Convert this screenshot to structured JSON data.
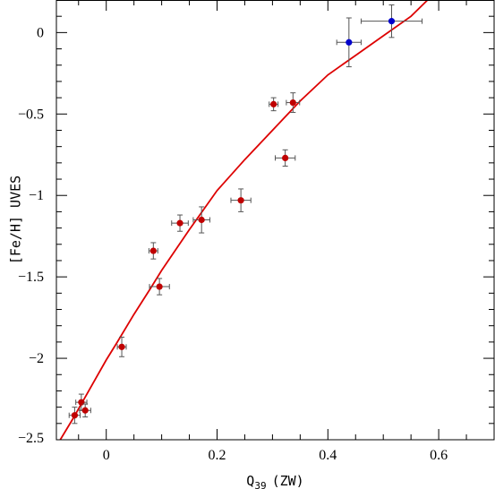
{
  "chart_data": {
    "type": "scatter",
    "title": "",
    "xlabel": "Q",
    "xlabel_subscript": "39",
    "xlabel_suffix": "(ZW)",
    "ylabel": "[Fe/H] UVES",
    "xlim": [
      -0.09,
      0.7
    ],
    "ylim": [
      -2.5,
      0.2
    ],
    "x_ticks": [
      0,
      0.2,
      0.4,
      0.6
    ],
    "x_tick_labels": [
      "0",
      "0.2",
      "0.4",
      "0.6"
    ],
    "y_ticks": [
      0,
      -0.5,
      -1,
      -1.5,
      -2,
      -2.5
    ],
    "y_tick_labels": [
      "0",
      "−0.5",
      "−1",
      "−1.5",
      "−2",
      "−2.5"
    ],
    "grid": false,
    "series": [
      {
        "color": "#c00000",
        "points": [
          {
            "x": -0.057,
            "y": -2.35,
            "xerr": 0.01,
            "yerr": 0.05
          },
          {
            "x": -0.045,
            "y": -2.27,
            "xerr": 0.01,
            "yerr": 0.05
          },
          {
            "x": -0.038,
            "y": -2.32,
            "xerr": 0.01,
            "yerr": 0.04
          },
          {
            "x": 0.028,
            "y": -1.93,
            "xerr": 0.008,
            "yerr": 0.06
          },
          {
            "x": 0.085,
            "y": -1.34,
            "xerr": 0.008,
            "yerr": 0.05
          },
          {
            "x": 0.096,
            "y": -1.56,
            "xerr": 0.018,
            "yerr": 0.05
          },
          {
            "x": 0.133,
            "y": -1.17,
            "xerr": 0.015,
            "yerr": 0.05
          },
          {
            "x": 0.172,
            "y": -1.15,
            "xerr": 0.015,
            "yerr": 0.08
          },
          {
            "x": 0.243,
            "y": -1.03,
            "xerr": 0.018,
            "yerr": 0.07
          },
          {
            "x": 0.302,
            "y": -0.44,
            "xerr": 0.008,
            "yerr": 0.04
          },
          {
            "x": 0.323,
            "y": -0.77,
            "xerr": 0.018,
            "yerr": 0.05
          },
          {
            "x": 0.337,
            "y": -0.43,
            "xerr": 0.012,
            "yerr": 0.06
          }
        ]
      },
      {
        "color": "#0000cc",
        "points": [
          {
            "x": 0.438,
            "y": -0.06,
            "xerr": 0.022,
            "yerr": 0.15
          },
          {
            "x": 0.515,
            "y": 0.07,
            "xerr": 0.055,
            "yerr": 0.1
          }
        ]
      }
    ],
    "fit_line": {
      "color": "#dd0000",
      "x": [
        -0.083,
        -0.06,
        -0.04,
        -0.02,
        0.0,
        0.02,
        0.05,
        0.08,
        0.1,
        0.15,
        0.2,
        0.25,
        0.3,
        0.35,
        0.4,
        0.45,
        0.5,
        0.55,
        0.58
      ],
      "y": [
        -2.5,
        -2.37,
        -2.25,
        -2.13,
        -2.01,
        -1.9,
        -1.73,
        -1.57,
        -1.46,
        -1.21,
        -0.97,
        -0.78,
        -0.6,
        -0.42,
        -0.26,
        -0.14,
        -0.02,
        0.1,
        0.2
      ]
    }
  }
}
